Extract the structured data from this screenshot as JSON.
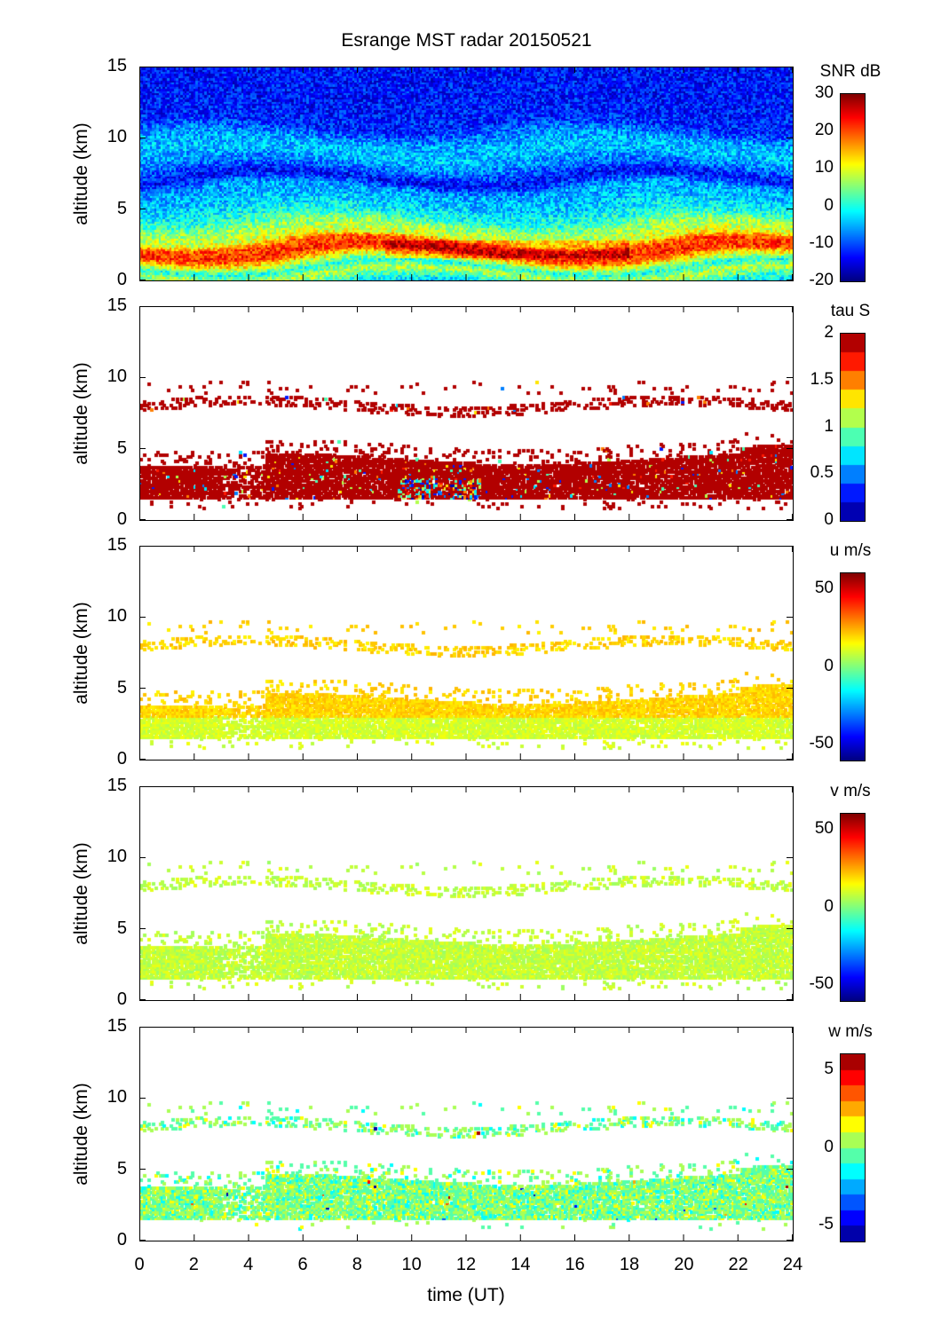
{
  "title": "Esrange MST radar 20150521",
  "chart_data": {
    "type": "heatmap",
    "title": "Esrange MST radar 20150521",
    "xlabel": "time (UT)",
    "xlim": [
      0,
      24
    ],
    "xticks": [
      "0",
      "2",
      "4",
      "6",
      "8",
      "10",
      "12",
      "14",
      "16",
      "18",
      "20",
      "22",
      "24"
    ],
    "panels": [
      {
        "ylabel": "altitude (km)",
        "ylim": [
          0,
          15
        ],
        "yticks": [
          "0",
          "5",
          "10",
          "15"
        ],
        "colorbar_label": "SNR dB",
        "clim": [
          -20,
          30
        ],
        "cticks": [
          "30",
          "20",
          "10",
          "0",
          "-10",
          "-20"
        ],
        "levels": 0,
        "coverage": "full",
        "profile_alt_km": [
          0,
          0.5,
          1.0,
          1.5,
          2.0,
          2.6,
          3.0,
          3.8,
          4.5,
          5.5,
          6.5,
          7.2,
          8.0,
          9.0,
          10.0,
          11.0,
          13.0,
          15.0
        ],
        "profile_value": [
          2,
          8,
          0,
          12,
          22,
          20,
          10,
          6,
          0,
          -4,
          -6,
          -14,
          -8,
          -4,
          -6,
          -12,
          -13,
          -13
        ]
      },
      {
        "ylabel": "altitude (km)",
        "ylim": [
          0,
          15
        ],
        "yticks": [
          "0",
          "5",
          "10",
          "15"
        ],
        "colorbar_label": "tau S",
        "clim": [
          0,
          2
        ],
        "cticks": [
          "2",
          "1.5",
          "1",
          "0.5",
          "0"
        ],
        "levels": 10,
        "coverage": "echo layers 1.5-4.5 km and ~8 km",
        "typical_value": 2.0
      },
      {
        "ylabel": "altitude (km)",
        "ylim": [
          0,
          15
        ],
        "yticks": [
          "0",
          "5",
          "10",
          "15"
        ],
        "colorbar_label": "u m/s",
        "clim": [
          -60,
          60
        ],
        "cticks": [
          "50",
          "0",
          "-50"
        ],
        "levels": 0,
        "coverage": "echo layers 1.5-4.5 km and ~8 km",
        "typical_value": 14
      },
      {
        "ylabel": "altitude (km)",
        "ylim": [
          0,
          15
        ],
        "yticks": [
          "0",
          "5",
          "10",
          "15"
        ],
        "colorbar_label": "v m/s",
        "clim": [
          -60,
          60
        ],
        "cticks": [
          "50",
          "0",
          "-50"
        ],
        "levels": 0,
        "coverage": "echo layers 1.5-4.5 km and ~8 km",
        "typical_value": 8
      },
      {
        "ylabel": "altitude (km)",
        "ylim": [
          0,
          15
        ],
        "yticks": [
          "0",
          "5",
          "10",
          "15"
        ],
        "colorbar_label": "w m/s",
        "clim": [
          -6,
          6
        ],
        "cticks": [
          "5",
          "0",
          "-5"
        ],
        "levels": 12,
        "coverage": "echo layers 0.5-4.5 km and ~8 km",
        "typical_value": 0
      }
    ]
  }
}
